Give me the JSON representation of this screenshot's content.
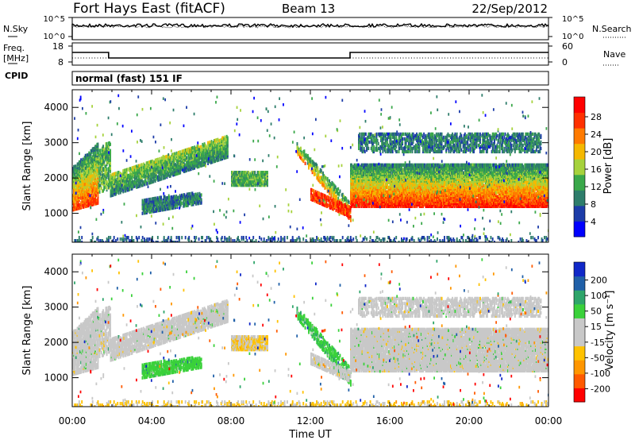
{
  "header": {
    "station": "Fort Hays East (fitACF)",
    "beam": "Beam 13",
    "date": "22/Sep/2012"
  },
  "noise_panel": {
    "left_label": "N.Sky",
    "left_ticks": [
      "10^5",
      "10^0"
    ],
    "right_label": "N.Search",
    "right_ticks": [
      "10^5",
      "10^0"
    ]
  },
  "freq_panel": {
    "left_label_1": "Freq.",
    "left_label_2": "[MHz]",
    "left_ticks": [
      "18",
      "8"
    ],
    "right_label": "Nave",
    "right_ticks": [
      "60",
      "0"
    ],
    "cpid_label": "CPID",
    "cpid_text": "normal (fast) 151 IF"
  },
  "colors": {
    "power_scale": [
      "#0000ff",
      "#1c3ca8",
      "#2e7d6b",
      "#3aa84a",
      "#a6d23c",
      "#f5b800",
      "#ff7a00",
      "#ff3000",
      "#ff0000"
    ],
    "velocity_scale": [
      "#ff0000",
      "#ff5a00",
      "#ff9600",
      "#ffc200",
      "#c8c8c8",
      "#c8c8c8",
      "#3ad13a",
      "#2ea56a",
      "#2060a8",
      "#1028c8"
    ]
  },
  "chart_data": [
    {
      "type": "line",
      "name": "noise",
      "x_range_hours": [
        0,
        24
      ],
      "series": [
        {
          "name": "N.Sky",
          "values": "near 10^5 throughout"
        },
        {
          "name": "N.Search",
          "values": "near 10^5 throughout"
        }
      ]
    },
    {
      "type": "line",
      "name": "frequency",
      "x_range_hours": [
        0,
        24
      ],
      "series": [
        {
          "name": "Freq.",
          "steps": [
            {
              "from": "00:00",
              "to": "01:50",
              "value": 14
            },
            {
              "from": "01:50",
              "to": "14:00",
              "value": 10.5
            },
            {
              "from": "14:00",
              "to": "24:00",
              "value": 14
            }
          ]
        },
        {
          "name": "Nave",
          "values": "approximately constant"
        }
      ]
    },
    {
      "type": "heatmap",
      "name": "power",
      "ylabel": "Slant Range [km]",
      "yticks": [
        "4000",
        "3000",
        "2000",
        "1000"
      ],
      "ylim": [
        180,
        4500
      ],
      "colorbar_label": "Power [dB]",
      "colorbar_ticks": [
        "28",
        "24",
        "20",
        "16",
        "12",
        "8",
        "4"
      ],
      "colorbar_range": [
        0,
        30
      ]
    },
    {
      "type": "heatmap",
      "name": "velocity",
      "ylabel": "Slant Range [km]",
      "yticks": [
        "4000",
        "3000",
        "2000",
        "1000"
      ],
      "ylim": [
        180,
        4500
      ],
      "xlabel": "Time UT",
      "xticks": [
        "00:00",
        "04:00",
        "08:00",
        "12:00",
        "16:00",
        "20:00",
        "00:00"
      ],
      "colorbar_label": "Velocity [m s⁻¹]",
      "colorbar_ticks": [
        "200",
        "100",
        "50",
        "15",
        "-15",
        "-50",
        "-100",
        "-200"
      ],
      "colorbar_range": [
        -250,
        250
      ]
    }
  ]
}
